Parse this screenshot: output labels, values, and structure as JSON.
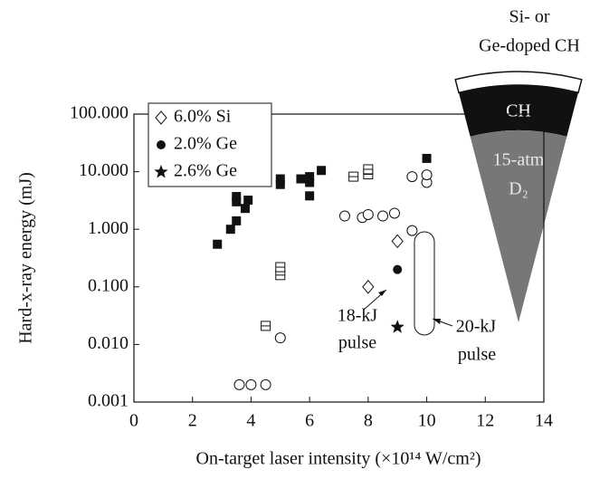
{
  "chart_data": {
    "type": "scatter",
    "ylog": true,
    "y_label": "Hard-x-ray energy (mJ)",
    "x_label": "On-target laser intensity (×10¹⁴ W/cm²)",
    "xlim": [
      0,
      14
    ],
    "xticks": [
      0,
      2,
      4,
      6,
      8,
      10,
      12,
      14
    ],
    "ylim": [
      0.001,
      100
    ],
    "yticks": [
      {
        "value": 0.001,
        "label": "0.001"
      },
      {
        "value": 0.01,
        "label": "0.010"
      },
      {
        "value": 0.1,
        "label": "0.100"
      },
      {
        "value": 1,
        "label": "1.000"
      },
      {
        "value": 10,
        "label": "10.000"
      },
      {
        "value": 100,
        "label": "100.000"
      }
    ],
    "legend": "top-left",
    "series": [
      {
        "marker": "square-filled",
        "color": "#111111",
        "x": [
          2.85,
          3.3,
          3.5,
          3.5,
          3.5,
          3.8,
          3.9,
          5.0,
          5.0,
          5.7,
          6.0,
          6.0,
          6.0,
          6.4,
          10.0
        ],
        "values": [
          0.55,
          1.0,
          1.4,
          3.0,
          3.7,
          2.3,
          3.2,
          6.0,
          7.5,
          7.5,
          6.5,
          8.2,
          3.8,
          10.5,
          17
        ]
      },
      {
        "marker": "square-open",
        "color": "#111111",
        "x": [
          4.5,
          5.0,
          5.0,
          7.5,
          8.0,
          8.0
        ],
        "values": [
          0.021,
          0.16,
          0.22,
          8.2,
          9.0,
          11.0
        ]
      },
      {
        "marker": "circle-open",
        "color": "#111111",
        "x": [
          3.6,
          4.0,
          4.5,
          5.0,
          7.2,
          7.8,
          8.0,
          8.5,
          8.9,
          9.5,
          9.5,
          10.0,
          10.0
        ],
        "values": [
          0.002,
          0.002,
          0.002,
          0.013,
          1.7,
          1.6,
          1.8,
          1.7,
          1.9,
          0.95,
          8.2,
          6.5,
          8.8
        ]
      },
      {
        "name": "6.0% Si",
        "marker": "diamond",
        "color": "#111111",
        "x": [
          8.0,
          9.0
        ],
        "values": [
          0.1,
          0.62
        ]
      },
      {
        "name": "2.0% Ge",
        "marker": "circle-filled",
        "color": "#111111",
        "x": [
          9.0
        ],
        "values": [
          0.2
        ]
      },
      {
        "name": "2.6% Ge",
        "marker": "star",
        "color": "#111111",
        "x": [
          9.0
        ],
        "values": [
          0.02
        ]
      }
    ],
    "annotations": [
      {
        "lines": [
          "18-kJ",
          "pulse"
        ]
      },
      {
        "lines": [
          "20-kJ",
          "pulse"
        ]
      }
    ],
    "diagram": {
      "title": [
        "Si- or",
        "Ge-doped CH"
      ],
      "shell": "CH",
      "fill": [
        "15-atm",
        "D₂"
      ]
    }
  }
}
